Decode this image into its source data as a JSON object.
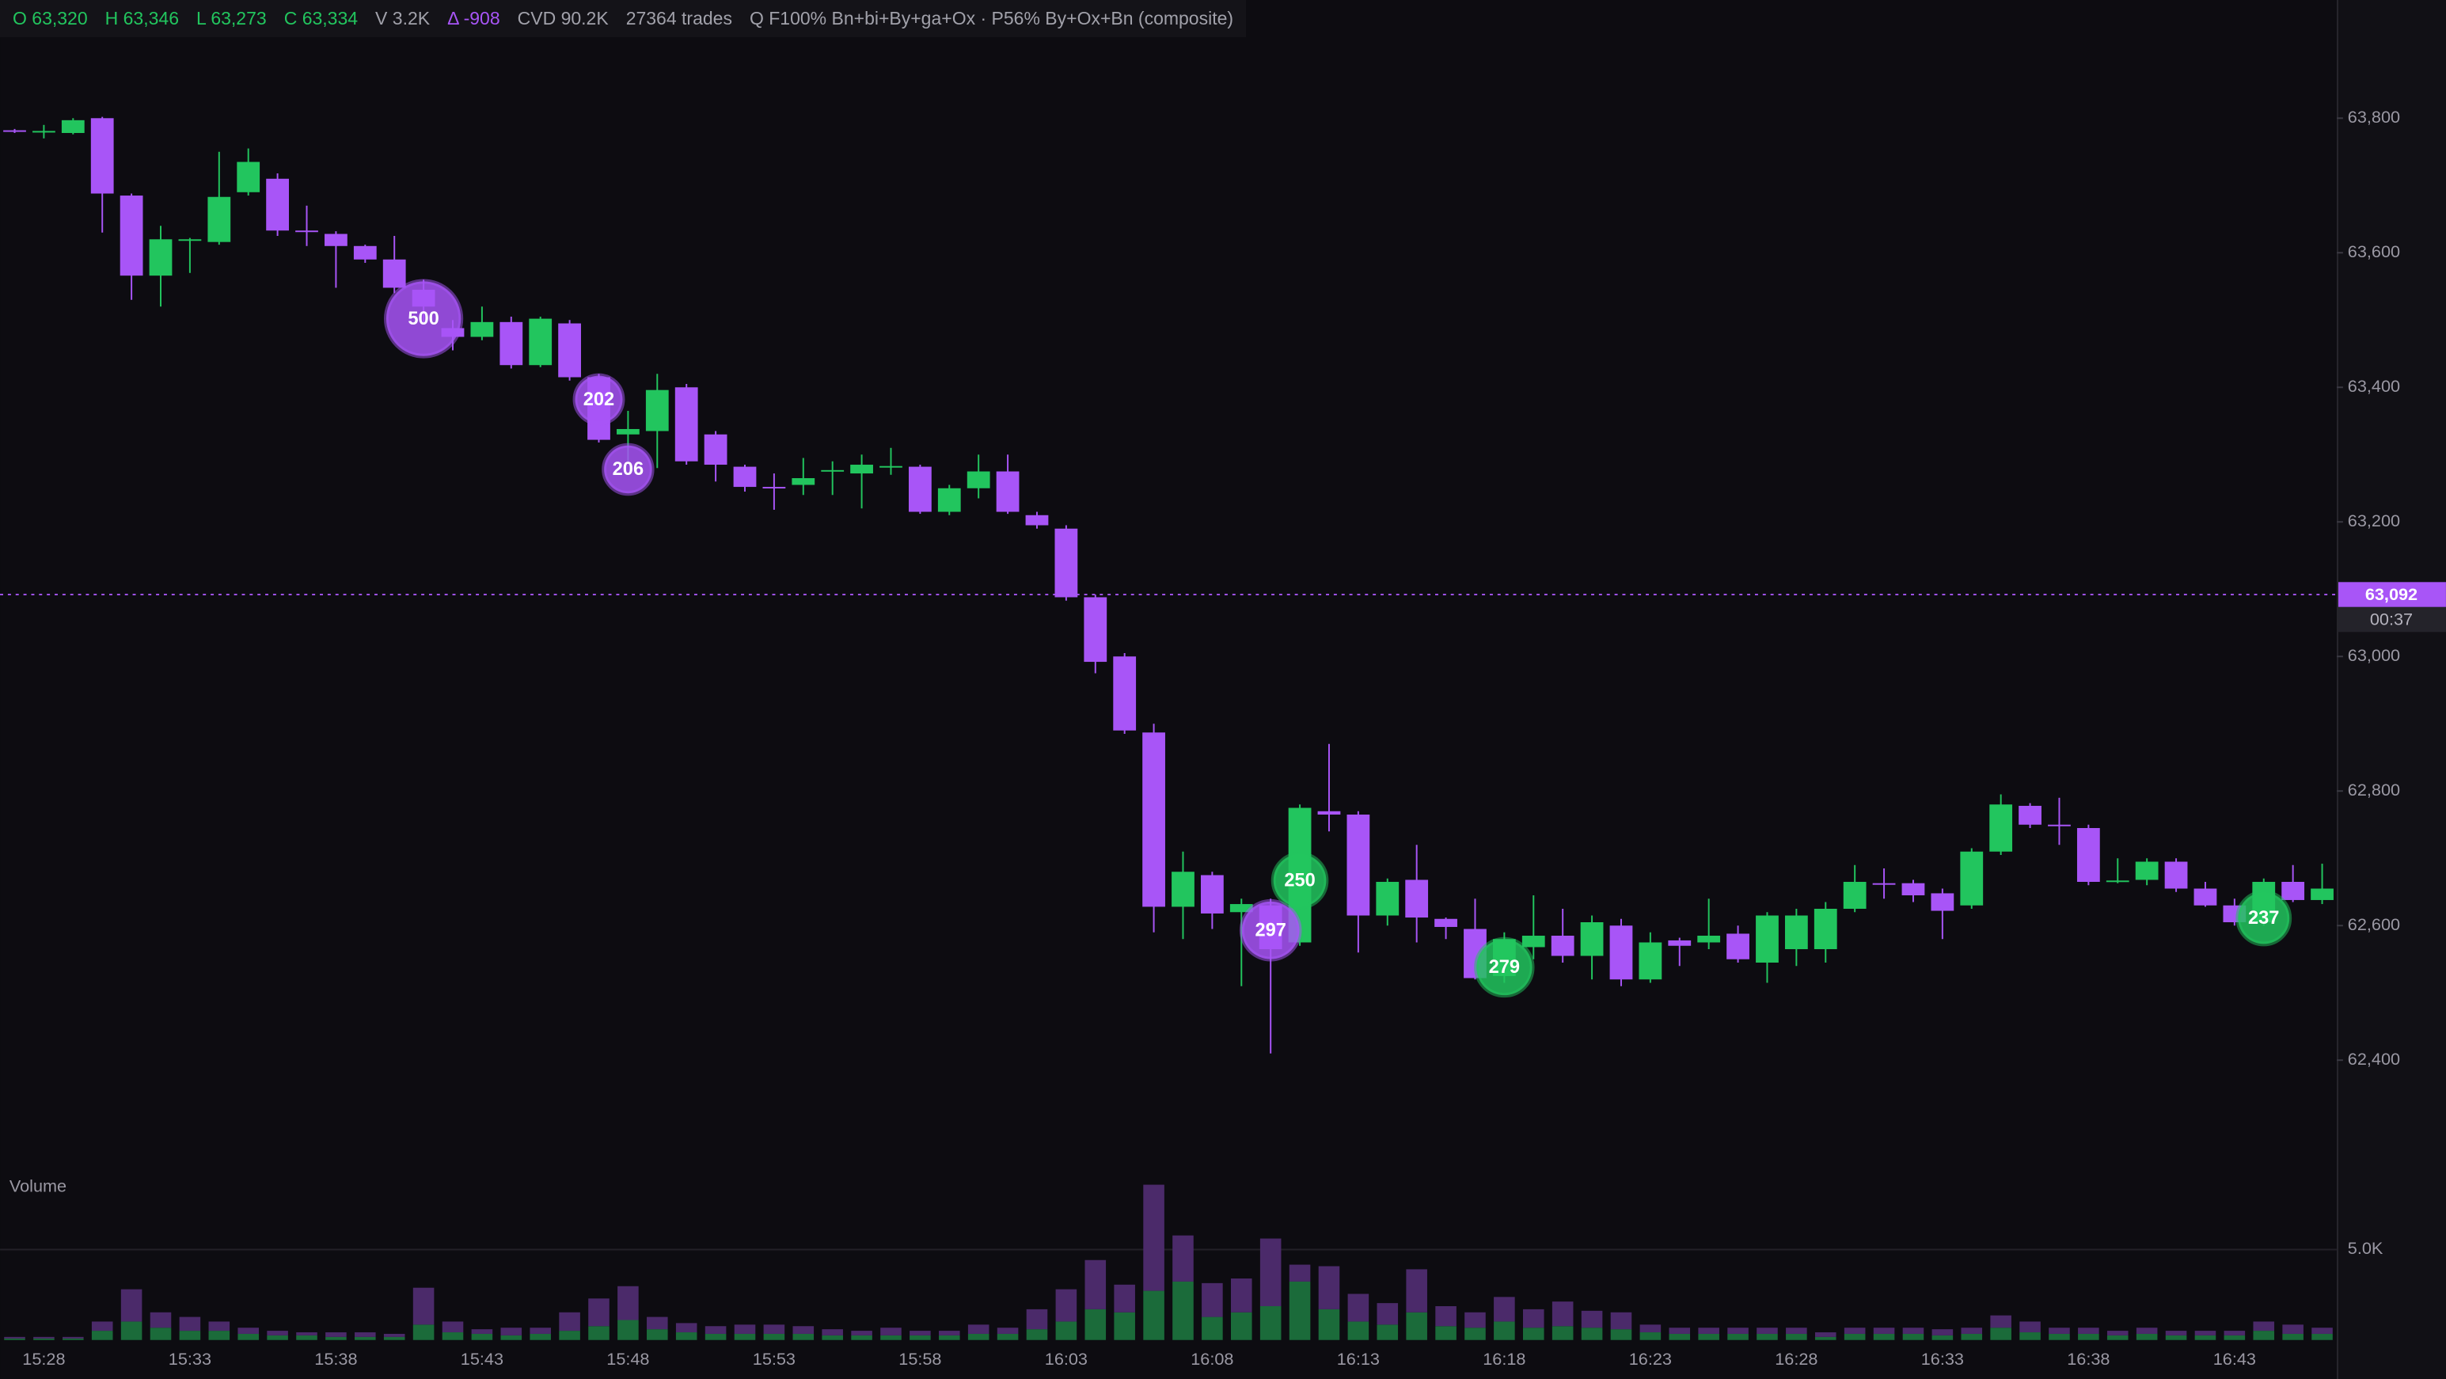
{
  "header": {
    "items": [
      {
        "text": "O 63,320",
        "color": "#22c55e"
      },
      {
        "text": "H 63,346",
        "color": "#22c55e"
      },
      {
        "text": "L 63,273",
        "color": "#22c55e"
      },
      {
        "text": "C 63,334",
        "color": "#22c55e"
      },
      {
        "text": "V 3.2K",
        "color": "#a1a1aa"
      },
      {
        "text": "Δ -908",
        "color": "#a855f7"
      },
      {
        "text": "CVD 90.2K",
        "color": "#a1a1aa"
      },
      {
        "text": "27364 trades",
        "color": "#a1a1aa"
      },
      {
        "text": "Q F100% Bn+bi+By+ga+Ox · P56% By+Ox+Bn (composite)",
        "color": "#a1a1aa"
      }
    ]
  },
  "chart_data": {
    "type": "candlestick",
    "categories": [
      null,
      "15:28",
      null,
      null,
      null,
      null,
      "15:33",
      null,
      null,
      null,
      null,
      "15:38",
      null,
      null,
      null,
      null,
      "15:43",
      null,
      null,
      null,
      null,
      "15:48",
      null,
      null,
      null,
      null,
      "15:53",
      null,
      null,
      null,
      null,
      "15:58",
      null,
      null,
      null,
      null,
      "16:03",
      null,
      null,
      null,
      null,
      "16:08",
      null,
      null,
      null,
      null,
      "16:13",
      null,
      null,
      null,
      null,
      "16:18",
      null,
      null,
      null,
      null,
      "16:23",
      null,
      null,
      null,
      null,
      "16:28",
      null,
      null,
      null,
      null,
      "16:33",
      null,
      null,
      null,
      null,
      "16:38",
      null,
      null,
      null,
      null,
      "16:43",
      null,
      null,
      null
    ],
    "open": [
      63782,
      63780,
      63778,
      63800,
      63685,
      63566,
      63618,
      63616,
      63690,
      63710,
      63633,
      63628,
      63610,
      63590,
      63545,
      63488,
      63475,
      63497,
      63433,
      63495,
      63415,
      63330,
      63335,
      63400,
      63330,
      63282,
      63252,
      63255,
      63275,
      63272,
      63282,
      63282,
      63215,
      63250,
      63275,
      63210,
      63190,
      63088,
      63000,
      62887,
      62628,
      62675,
      62620,
      62630,
      62575,
      62770,
      62765,
      62615,
      62668,
      62610,
      62595,
      62525,
      62568,
      62585,
      62555,
      62600,
      62520,
      62578,
      62575,
      62588,
      62545,
      62565,
      62565,
      62625,
      62663,
      62663,
      62648,
      62630,
      62710,
      62778,
      62750,
      62745,
      62665,
      62668,
      62695,
      62655,
      62630,
      62605,
      62665,
      62638
    ],
    "high": [
      63784,
      63790,
      63800,
      63802,
      63688,
      63640,
      63622,
      63750,
      63755,
      63718,
      63670,
      63632,
      63612,
      63625,
      63560,
      63500,
      63520,
      63505,
      63505,
      63500,
      63420,
      63365,
      63420,
      63405,
      63335,
      63285,
      63272,
      63295,
      63290,
      63300,
      63310,
      63285,
      63255,
      63300,
      63300,
      63215,
      63195,
      63092,
      63005,
      62900,
      62710,
      62680,
      62640,
      62640,
      62780,
      62870,
      62770,
      62670,
      62720,
      62612,
      62640,
      62590,
      62645,
      62625,
      62615,
      62610,
      62590,
      62582,
      62640,
      62600,
      62620,
      62625,
      62635,
      62690,
      62685,
      62668,
      62655,
      62715,
      62795,
      62782,
      62790,
      62750,
      62700,
      62700,
      62700,
      62665,
      62640,
      62670,
      62690,
      62692
    ],
    "low": [
      63778,
      63770,
      63776,
      63630,
      63530,
      63520,
      63570,
      63612,
      63685,
      63625,
      63610,
      63548,
      63585,
      63540,
      63495,
      63455,
      63470,
      63428,
      63430,
      63410,
      63318,
      63290,
      63280,
      63285,
      63260,
      63245,
      63218,
      63240,
      63240,
      63220,
      63270,
      63212,
      63210,
      63235,
      63212,
      63190,
      63083,
      62975,
      62885,
      62590,
      62580,
      62595,
      62510,
      62410,
      62570,
      62740,
      62560,
      62600,
      62575,
      62580,
      62520,
      62515,
      62550,
      62545,
      62520,
      62510,
      62515,
      62540,
      62565,
      62545,
      62515,
      62540,
      62545,
      62620,
      62640,
      62635,
      62580,
      62625,
      62705,
      62745,
      62720,
      62660,
      62663,
      62660,
      62650,
      62628,
      62600,
      62600,
      62635,
      62632
    ],
    "close": [
      63780,
      63781,
      63797,
      63688,
      63566,
      63620,
      63620,
      63683,
      63735,
      63633,
      63631,
      63610,
      63590,
      63548,
      63520,
      63475,
      63497,
      63433,
      63502,
      63415,
      63322,
      63338,
      63396,
      63290,
      63285,
      63252,
      63250,
      63265,
      63277,
      63285,
      63283,
      63215,
      63250,
      63275,
      63215,
      63195,
      63088,
      62992,
      62890,
      62628,
      62680,
      62618,
      62632,
      62565,
      62775,
      62765,
      62615,
      62665,
      62612,
      62598,
      62522,
      62580,
      62585,
      62555,
      62605,
      62520,
      62575,
      62570,
      62585,
      62550,
      62615,
      62615,
      62625,
      62665,
      62662,
      62645,
      62622,
      62710,
      62780,
      62750,
      62748,
      62665,
      62667,
      62695,
      62655,
      62630,
      62605,
      62665,
      62638,
      62655
    ],
    "up_color": "#22c55e",
    "down_color": "#a855f7",
    "ylim": [
      62260,
      63920
    ],
    "yticks": [
      {
        "value": 62400,
        "label": "62,400"
      },
      {
        "value": 62600,
        "label": "62,600"
      },
      {
        "value": 62800,
        "label": "62,800"
      },
      {
        "value": 63000,
        "label": "63,000"
      },
      {
        "value": 63200,
        "label": "63,200"
      },
      {
        "value": 63400,
        "label": "63,400"
      },
      {
        "value": 63600,
        "label": "63,600"
      },
      {
        "value": 63800,
        "label": "63,800"
      }
    ],
    "price_line": {
      "value": 63092,
      "label": "63,092",
      "countdown": "00:37",
      "color": "#a855f7"
    },
    "trades": [
      {
        "value": 500,
        "candle": 14,
        "price": 63502,
        "color": "#a855f7"
      },
      {
        "value": 202,
        "candle": 20,
        "price": 63382,
        "color": "#a855f7"
      },
      {
        "value": 206,
        "candle": 21,
        "price": 63278,
        "color": "#a855f7"
      },
      {
        "value": 297,
        "candle": 43,
        "price": 62593,
        "color": "#a855f7"
      },
      {
        "value": 250,
        "candle": 44,
        "price": 62667,
        "color": "#22c55e"
      },
      {
        "value": 279,
        "candle": 51,
        "price": 62538,
        "color": "#22c55e"
      },
      {
        "value": 237,
        "candle": 77,
        "price": 62611,
        "color": "#22c55e"
      }
    ],
    "volume": {
      "title": "Volume",
      "ylim": [
        0,
        9400
      ],
      "yticks": [
        {
          "value": 5000,
          "label": "5.0K"
        }
      ],
      "series": [
        {
          "color": "#1b6b3a",
          "values": [
            85,
            85,
            85,
            510,
            1020,
            680,
            510,
            510,
            340,
            255,
            255,
            170,
            170,
            170,
            850,
            425,
            340,
            255,
            340,
            510,
            765,
            1105,
            595,
            425,
            340,
            340,
            340,
            340,
            255,
            255,
            255,
            255,
            255,
            340,
            340,
            595,
            1020,
            1700,
            1530,
            2720,
            3230,
            1275,
            1530,
            1870,
            3230,
            1700,
            1020,
            850,
            1530,
            765,
            680,
            1020,
            680,
            765,
            680,
            595,
            425,
            340,
            340,
            340,
            340,
            340,
            170,
            340,
            340,
            340,
            255,
            340,
            680,
            425,
            340,
            340,
            255,
            340,
            255,
            255,
            255,
            510,
            340,
            340
          ]
        },
        {
          "color": "#4b2a6a",
          "values": [
            85,
            85,
            85,
            510,
            1785,
            850,
            765,
            510,
            340,
            255,
            170,
            255,
            255,
            170,
            2040,
            595,
            255,
            425,
            340,
            1020,
            1530,
            1870,
            680,
            510,
            425,
            510,
            510,
            425,
            340,
            255,
            425,
            255,
            255,
            510,
            340,
            1105,
            1785,
            2720,
            1530,
            5865,
            2550,
            1870,
            1870,
            3740,
            935,
            2380,
            1530,
            1190,
            2380,
            1105,
            850,
            1360,
            1020,
            1360,
            935,
            935,
            425,
            340,
            340,
            340,
            340,
            340,
            255,
            340,
            340,
            340,
            340,
            340,
            680,
            595,
            340,
            340,
            255,
            340,
            255,
            255,
            255,
            510,
            510,
            340
          ]
        }
      ]
    }
  }
}
